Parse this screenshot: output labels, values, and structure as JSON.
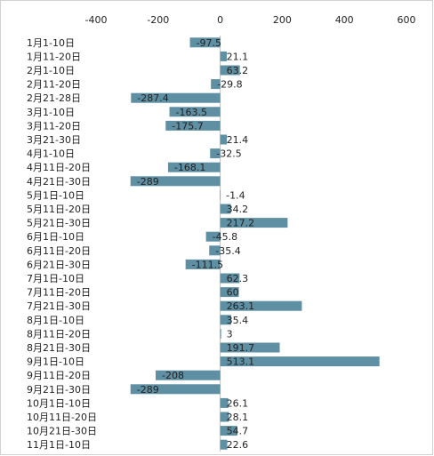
{
  "chart_data": {
    "type": "barh",
    "categories": [
      "1月1-10日",
      "1月11-20日",
      "2月1-10日",
      "2月11-20日",
      "2月21-28日",
      "3月1-10日",
      "3月11-20日",
      "3月21-30日",
      "4月1-10日",
      "4月11日-20日",
      "4月21日-30日",
      "5月1日-10日",
      "5月11日-20日",
      "5月21日-30日",
      "6月1日-10日",
      "6月11日-20日",
      "6月21日-30日",
      "7月1日-10日",
      "7月11日-20日",
      "7月21日-30日",
      "8月1日-10日",
      "8月11日-20日",
      "8月21日-30日",
      "9月1日-10日",
      "9月11日-20日",
      "9月21日-30日",
      "10月1日-10日",
      "10月11日-20日",
      "10月21日-30日",
      "11月1日-10日"
    ],
    "values": [
      -97.5,
      21.1,
      63.2,
      -29.8,
      -287.4,
      -163.5,
      -175.7,
      21.4,
      -32.5,
      -168.1,
      -289,
      -1.4,
      34.2,
      217.2,
      -45.8,
      -35.4,
      -111.5,
      62.3,
      60,
      263.1,
      35.4,
      3,
      191.7,
      513.1,
      -208,
      -289,
      26.1,
      28.1,
      54.7,
      22.6
    ],
    "color": "#5e8fa3",
    "xlim": [
      -400,
      600
    ],
    "xticks": [
      -400,
      -200,
      0,
      200,
      400,
      600
    ]
  }
}
